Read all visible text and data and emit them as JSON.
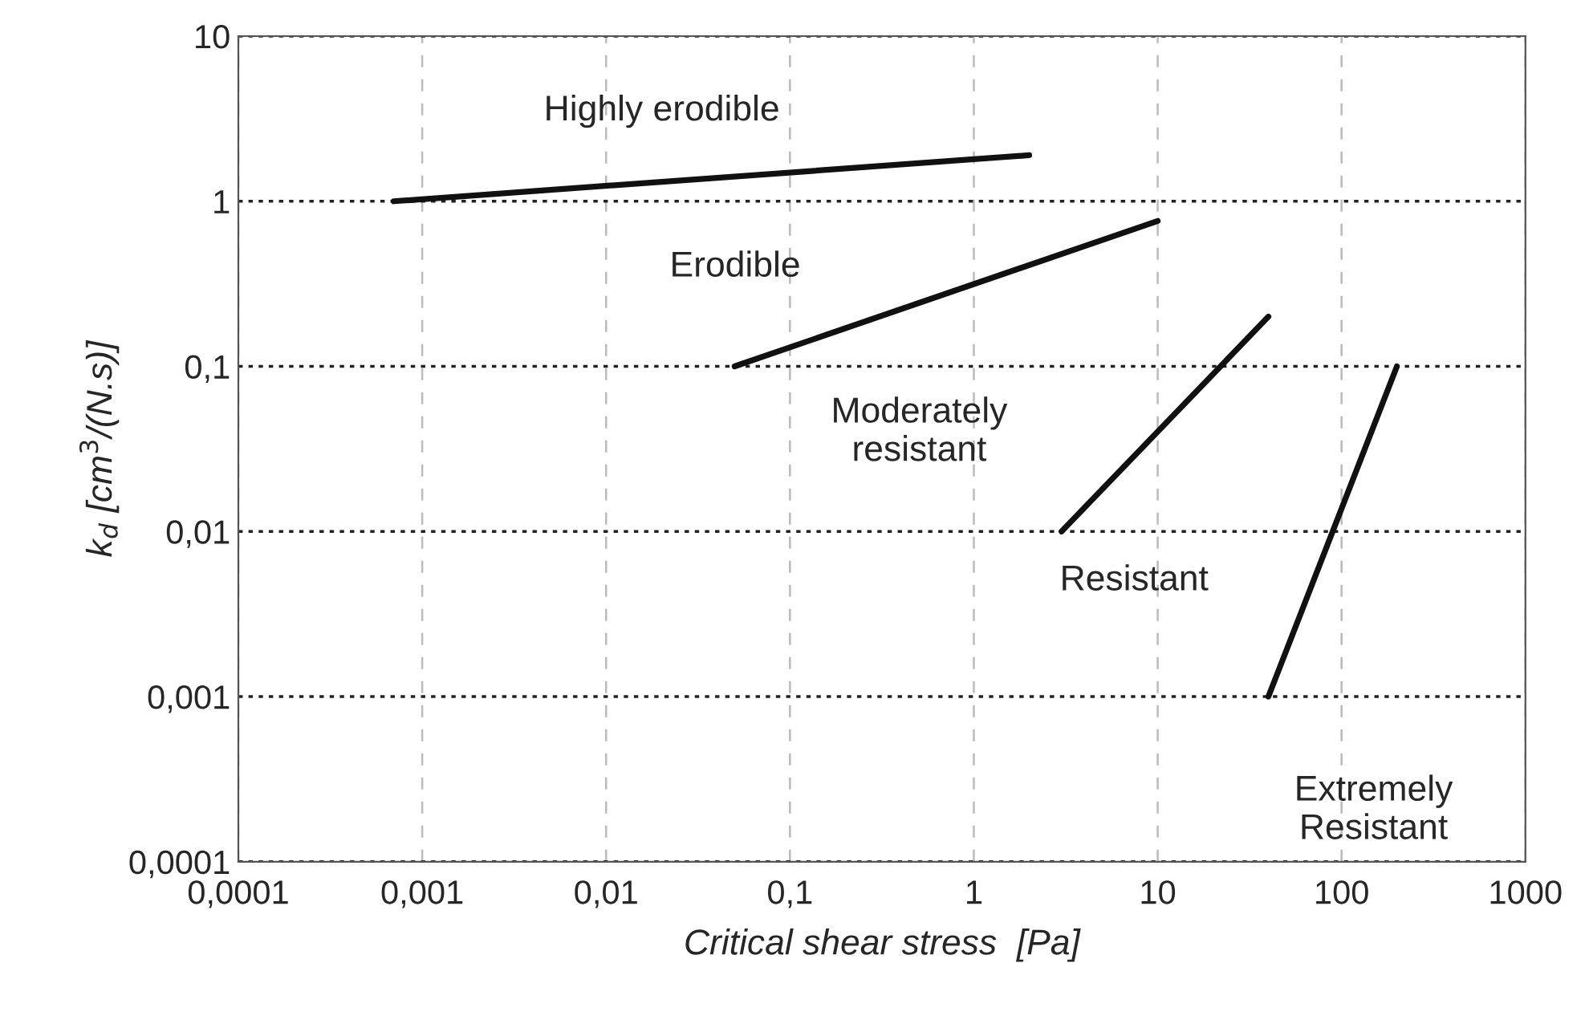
{
  "chart_data": {
    "type": "line",
    "xlabel": "Critical shear stress  [Pa]",
    "ylabel": "k$_{d}$ [cm$^{3}$/(N.s)]",
    "log": "xy",
    "grid": true,
    "marker": "none",
    "line_style": "solid",
    "xlim": [
      0.0001,
      1000
    ],
    "ylim": [
      0.0001,
      10
    ],
    "xticks": [
      {
        "value": 0.0001,
        "label": "0,0001"
      },
      {
        "value": 0.001,
        "label": "0,001"
      },
      {
        "value": 0.01,
        "label": "0,01"
      },
      {
        "value": 0.1,
        "label": "0,1"
      },
      1,
      10,
      100,
      1000
    ],
    "yticks": [
      {
        "value": 0.0001,
        "label": "0,0001"
      },
      {
        "value": 0.001,
        "label": "0,001"
      },
      {
        "value": 0.01,
        "label": "0,01"
      },
      {
        "value": 0.1,
        "label": "0,1"
      },
      1,
      10
    ],
    "series": [
      {
        "color": "#111111",
        "x": [
          0.0007,
          2
        ],
        "values": [
          1,
          1.9
        ]
      },
      {
        "color": "#111111",
        "x": [
          0.05,
          10
        ],
        "values": [
          0.1,
          0.76
        ]
      },
      {
        "color": "#111111",
        "x": [
          3,
          40
        ],
        "values": [
          0.01,
          0.2
        ]
      },
      {
        "color": "#111111",
        "x": [
          40,
          200
        ],
        "values": [
          0.001,
          0.1
        ]
      }
    ],
    "annotations": [
      "Highly erodible",
      "Erodible",
      "Moderately\nresistant",
      "Resistant",
      "Extremely\nResistant"
    ]
  }
}
